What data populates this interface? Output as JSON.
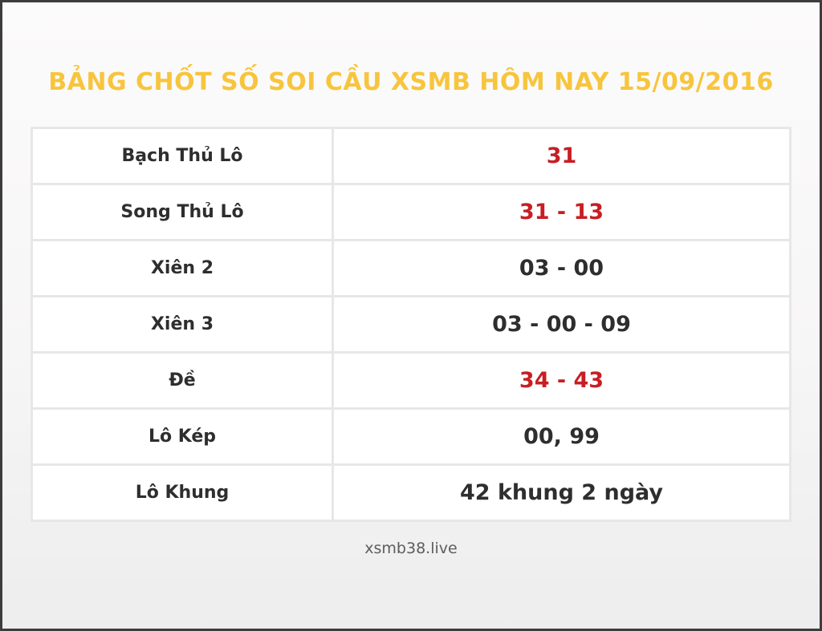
{
  "page": {
    "title": "BẢNG CHỐT SỐ SOI CẦU XSMB HÔM NAY 15/09/2016",
    "footer": "xsmb38.live"
  },
  "colors": {
    "title": "#f7c53d",
    "highlight_red": "#c81e23",
    "text_dark": "#2e2e2e"
  },
  "table": {
    "rows": [
      {
        "label": "Bạch Thủ Lô",
        "value": "31",
        "color": "#c81e23"
      },
      {
        "label": "Song Thủ Lô",
        "value": "31 - 13",
        "color": "#c81e23"
      },
      {
        "label": "Xiên 2",
        "value": "03 - 00",
        "color": "#2e2e2e"
      },
      {
        "label": "Xiên 3",
        "value": "03 - 00 - 09",
        "color": "#2e2e2e"
      },
      {
        "label": "Đề",
        "value": "34 - 43",
        "color": "#c81e23"
      },
      {
        "label": "Lô Kép",
        "value": "00, 99",
        "color": "#2e2e2e"
      },
      {
        "label": "Lô Khung",
        "value": "42 khung 2 ngày",
        "color": "#2e2e2e"
      }
    ]
  }
}
